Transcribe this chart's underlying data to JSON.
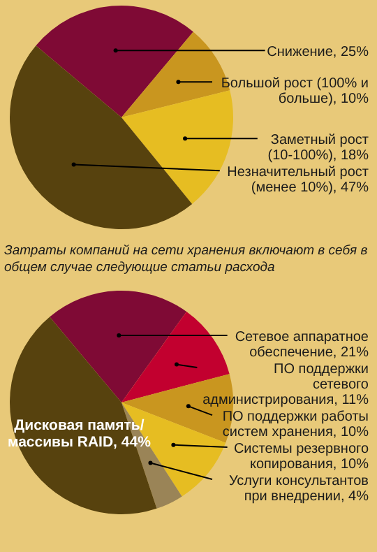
{
  "chart_data": [
    {
      "type": "pie",
      "categories": [
        "Снижение",
        "Большой рост (100% и больше)",
        "Заметный рост (10-100%)",
        "Незначительный рост (менее 10%)"
      ],
      "values": [
        25,
        10,
        18,
        47
      ],
      "value_labels": [
        "25%",
        "10%",
        "18%",
        "47%"
      ],
      "colors": [
        "#7f0a35",
        "#c9961f",
        "#e6bd22",
        "#57420e"
      ]
    },
    {
      "type": "pie",
      "title": "Затраты компаний на сети хранения включают в себя в общем случае следующие статьи расхода",
      "categories": [
        "Сетевое аппаратное обеспечение",
        "ПО поддержки сетевого администрирования",
        "ПО поддержки работы систем хранения",
        "Системы резервного копирования",
        "Услуги консультантов при внедрении",
        "Дисковая память/ массивы RAID"
      ],
      "values": [
        21,
        11,
        10,
        10,
        4,
        44
      ],
      "value_labels": [
        "21%",
        "11%",
        "10%",
        "10%",
        "4%",
        "44%"
      ],
      "colors": [
        "#7f0a35",
        "#c2002f",
        "#c9961f",
        "#e6bd22",
        "#9a8457",
        "#57420e"
      ]
    }
  ]
}
